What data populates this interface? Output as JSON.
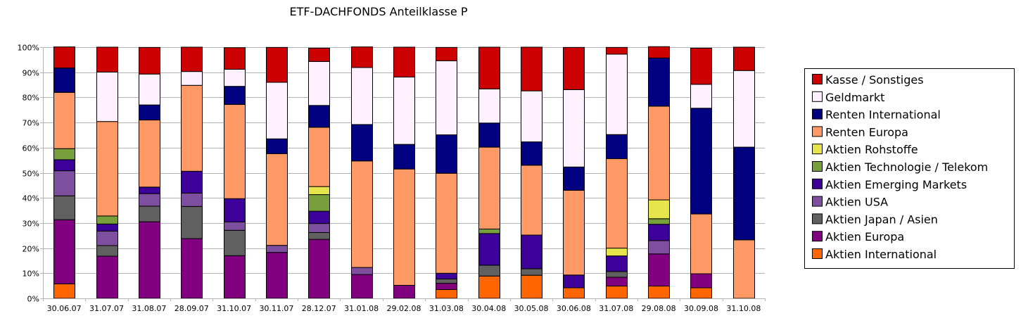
{
  "chart_data": {
    "type": "bar",
    "stacked": true,
    "percent": true,
    "title": "ETF-DACHFONDS Anteilklasse P",
    "xlabel": "",
    "ylabel": "",
    "ylim": [
      0,
      100
    ],
    "y_ticks": [
      "0%",
      "10%",
      "20%",
      "30%",
      "40%",
      "50%",
      "60%",
      "70%",
      "80%",
      "90%",
      "100%"
    ],
    "grid": true,
    "legend_position": "right",
    "categories": [
      "30.06.07",
      "31.07.07",
      "31.08.07",
      "28.09.07",
      "31.10.07",
      "30.11.07",
      "28.12.07",
      "31.01.08",
      "29.02.08",
      "31.03.08",
      "30.04.08",
      "30.05.08",
      "30.06.08",
      "31.07.08",
      "29.08.08",
      "30.09.08",
      "31.10.08"
    ],
    "series": [
      {
        "name": "Aktien International",
        "color": "#ff6600",
        "values": [
          5.8,
          0,
          0,
          0,
          0,
          0,
          0,
          0,
          0,
          3.5,
          8.9,
          9.2,
          4.2,
          4.9,
          4.9,
          4.2,
          0
        ]
      },
      {
        "name": "Aktien Europa",
        "color": "#800080",
        "values": [
          25.5,
          16.8,
          30.5,
          23.8,
          17.0,
          18.3,
          23.5,
          9.5,
          5.2,
          2.5,
          0,
          0,
          0,
          3.5,
          12.8,
          5.6,
          0
        ]
      },
      {
        "name": "Aktien Japan / Asien",
        "color": "#606060",
        "values": [
          9.5,
          4.2,
          6.2,
          12.8,
          10.1,
          0,
          2.7,
          0,
          0,
          1.7,
          4.3,
          2.6,
          0,
          2.3,
          0,
          0,
          0
        ]
      },
      {
        "name": "Aktien USA",
        "color": "#7f4f9f",
        "values": [
          10.0,
          5.8,
          5.0,
          5.3,
          3.3,
          2.8,
          3.6,
          2.8,
          0,
          0,
          0,
          0,
          0,
          0,
          5.3,
          0,
          0
        ]
      },
      {
        "name": "Aktien Emerging Markets",
        "color": "#3d0099",
        "values": [
          4.4,
          2.8,
          2.6,
          8.7,
          9.3,
          0,
          4.9,
          0,
          0,
          2.3,
          12.6,
          13.4,
          5.1,
          6.2,
          6.5,
          0,
          0
        ]
      },
      {
        "name": "Aktien Technologie / Telekom",
        "color": "#77a03c",
        "values": [
          4.4,
          3.2,
          0,
          0,
          0,
          0,
          6.6,
          0,
          0,
          0,
          1.8,
          0,
          0,
          0,
          2.2,
          0,
          0
        ]
      },
      {
        "name": "Aktien Rohstoffe",
        "color": "#e6e64c",
        "values": [
          0,
          0,
          0,
          0,
          0,
          0,
          3.2,
          0,
          0,
          0,
          0,
          0,
          0,
          3.1,
          7.5,
          0,
          0
        ]
      },
      {
        "name": "Renten Europa",
        "color": "#ff9966",
        "values": [
          22.4,
          37.6,
          26.7,
          34.2,
          37.5,
          36.5,
          23.6,
          42.4,
          46.3,
          39.8,
          32.6,
          27.8,
          33.7,
          35.6,
          37.3,
          23.8,
          23.3
        ]
      },
      {
        "name": "Renten International",
        "color": "#000080",
        "values": [
          9.7,
          0,
          6.0,
          0,
          7.2,
          5.9,
          8.7,
          14.5,
          9.8,
          15.3,
          9.6,
          9.3,
          9.3,
          9.6,
          19.2,
          42.1,
          36.9
        ]
      },
      {
        "name": "Geldmarkt",
        "color": "#fff0ff",
        "values": [
          0,
          19.7,
          12.3,
          5.5,
          6.8,
          22.5,
          17.5,
          22.7,
          26.8,
          29.5,
          13.6,
          20.3,
          30.8,
          32.0,
          0,
          9.5,
          30.5
        ]
      },
      {
        "name": "Kasse / Sonstiges",
        "color": "#cc0000",
        "values": [
          8.4,
          9.9,
          10.6,
          9.7,
          8.6,
          13.9,
          5.3,
          8.2,
          11.9,
          5.3,
          16.6,
          17.4,
          16.8,
          2.7,
          4.5,
          14.4,
          9.3
        ]
      }
    ]
  }
}
